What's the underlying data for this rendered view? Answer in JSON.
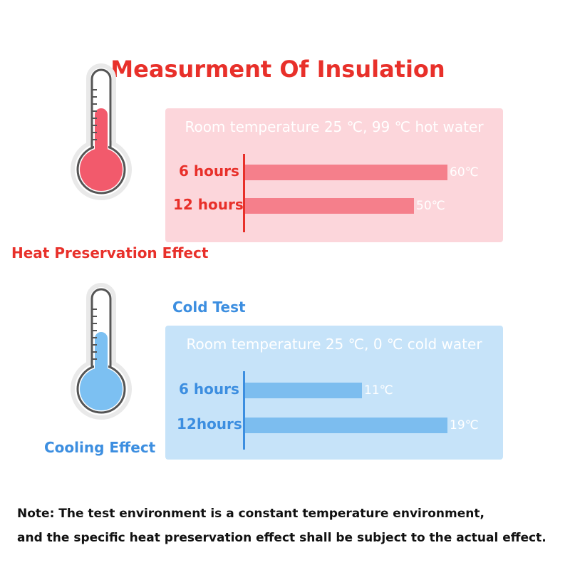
{
  "title": "Measurment Of Insulation",
  "colors": {
    "title": "#e8302a",
    "hot_panel_bg": "#fcd6db",
    "hot_bar": "#f57f8b",
    "hot_label": "#e8302a",
    "cold_panel_bg": "#c6e3f9",
    "cold_bar": "#7cbdef",
    "cold_label": "#3c8ee0"
  },
  "icons": [
    "thermometer-hot-icon",
    "thermometer-cold-icon"
  ],
  "hot": {
    "effect_label": "Heat Preservation Effect"
  },
  "cold": {
    "section_label": "Cold Test",
    "effect_label": "Cooling Effect"
  },
  "note": {
    "line1": "Note: The test environment is a constant temperature environment,",
    "line2": "and the specific heat preservation effect shall be subject to the actual effect."
  },
  "chart_data": [
    {
      "type": "bar",
      "orientation": "horizontal",
      "title": "Room temperature 25 ℃, 99 ℃ hot water",
      "categories": [
        "6 hours",
        "12 hours"
      ],
      "values": [
        60,
        50
      ],
      "value_labels": [
        "60℃",
        "50℃"
      ],
      "xlim": [
        0,
        60
      ]
    },
    {
      "type": "bar",
      "orientation": "horizontal",
      "title": "Room temperature 25 ℃, 0 ℃ cold water",
      "categories": [
        "6 hours",
        "12hours"
      ],
      "values": [
        11,
        19
      ],
      "value_labels": [
        "11℃",
        "19℃"
      ],
      "xlim": [
        0,
        19
      ]
    }
  ]
}
